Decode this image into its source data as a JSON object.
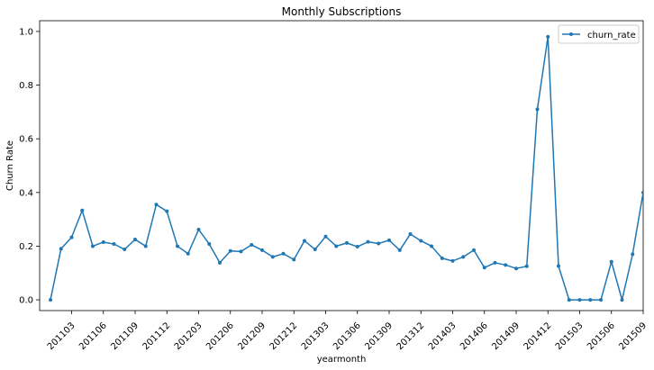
{
  "chart_data": {
    "type": "line",
    "title": "Monthly Subscriptions",
    "xlabel": "yearmonth",
    "ylabel": "Churn Rate",
    "ylim": [
      -0.04,
      1.04
    ],
    "yticks": [
      0.0,
      0.2,
      0.4,
      0.6,
      0.8,
      1.0
    ],
    "ytick_labels": [
      "0.0",
      "0.2",
      "0.4",
      "0.6",
      "0.8",
      "1.0"
    ],
    "xtick_labels": [
      "201103",
      "201106",
      "201109",
      "201112",
      "201203",
      "201206",
      "201209",
      "201212",
      "201303",
      "201306",
      "201309",
      "201312",
      "201403",
      "201406",
      "201409",
      "201412",
      "201503",
      "201506",
      "201509"
    ],
    "xtick_rotation": 45,
    "legend_position": "upper right",
    "grid": false,
    "color": "#1f77b4",
    "series": [
      {
        "name": "churn_rate",
        "x": [
          "201101",
          "201102",
          "201103",
          "201104",
          "201105",
          "201106",
          "201107",
          "201108",
          "201109",
          "201110",
          "201111",
          "201112",
          "201201",
          "201202",
          "201203",
          "201204",
          "201205",
          "201206",
          "201207",
          "201208",
          "201209",
          "201210",
          "201211",
          "201212",
          "201301",
          "201302",
          "201303",
          "201304",
          "201305",
          "201306",
          "201307",
          "201308",
          "201309",
          "201310",
          "201311",
          "201312",
          "201401",
          "201402",
          "201403",
          "201404",
          "201405",
          "201406",
          "201407",
          "201408",
          "201409",
          "201410",
          "201411",
          "201412",
          "201501",
          "201502",
          "201503",
          "201504",
          "201505",
          "201506",
          "201507",
          "201508",
          "201509",
          "201510"
        ],
        "values": [
          0.0,
          0.19,
          0.233,
          0.333,
          0.2,
          0.215,
          0.208,
          0.188,
          0.225,
          0.2,
          0.355,
          0.33,
          0.2,
          0.172,
          0.262,
          0.208,
          0.138,
          0.182,
          0.18,
          0.205,
          0.185,
          0.16,
          0.172,
          0.15,
          0.22,
          0.188,
          0.236,
          0.2,
          0.212,
          0.198,
          0.216,
          0.21,
          0.222,
          0.185,
          0.245,
          0.22,
          0.2,
          0.155,
          0.145,
          0.16,
          0.185,
          0.12,
          0.138,
          0.13,
          0.117,
          0.125,
          0.71,
          0.98,
          0.126,
          0.0,
          0.0,
          0.0,
          0.0,
          0.142,
          0.0,
          0.17,
          0.4,
          0.42
        ]
      }
    ]
  }
}
